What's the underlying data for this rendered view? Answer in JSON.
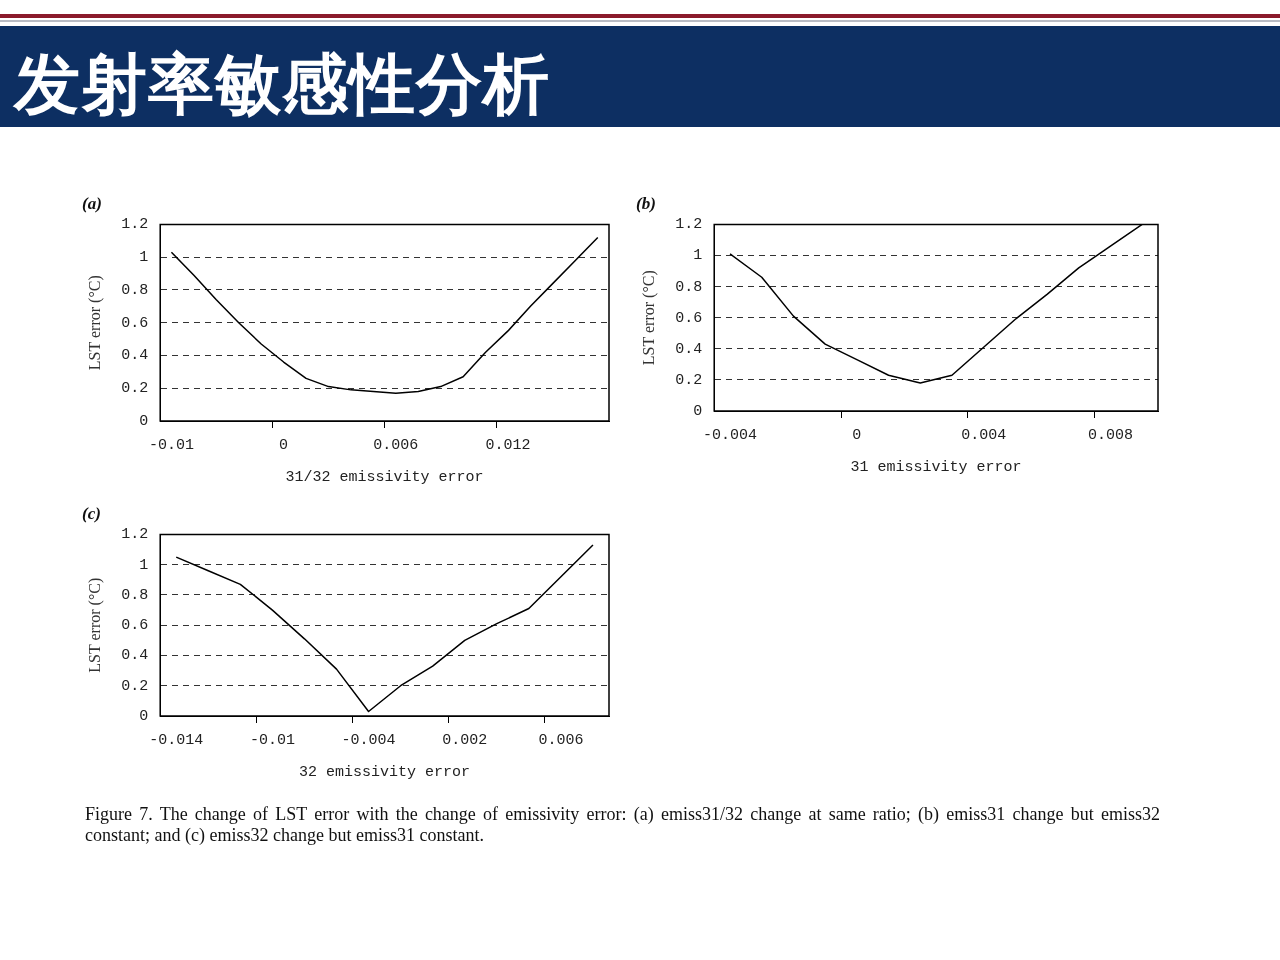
{
  "chart_data": [
    {
      "type": "other",
      "title": "发射率敏感性分析",
      "annotations": [
        "Figure 7.  The change of LST error with the change of emissivity error: (a) emiss31/32 change at same ratio; (b) emiss31 change but emiss32 constant; and (c) emiss32 change but emiss31 constant."
      ]
    },
    {
      "type": "line",
      "title": "(a)",
      "xlabel": "31/32 emissivity error",
      "ylabel": "LST error (°C)",
      "categories": [
        "-0.01",
        null,
        null,
        null,
        null,
        "0",
        null,
        null,
        null,
        null,
        "0.006",
        null,
        null,
        null,
        null,
        "0.012",
        null,
        null,
        null,
        null
      ],
      "values": [
        1.03,
        0.89,
        0.74,
        0.6,
        0.47,
        0.36,
        0.26,
        0.21,
        0.19,
        0.18,
        0.17,
        0.18,
        0.21,
        0.27,
        0.42,
        0.55,
        0.7,
        0.84,
        0.98,
        1.12
      ],
      "color": "#000000",
      "ylim": [
        0,
        1.2
      ],
      "yticks": [
        0,
        0.2,
        0.4,
        0.6,
        0.8,
        1,
        1.2
      ],
      "grid": "y",
      "legend": false
    },
    {
      "type": "line",
      "title": "(b)",
      "xlabel": "31 emissivity error",
      "ylabel": "LST error (°C)",
      "categories": [
        "-0.004",
        null,
        null,
        null,
        "0",
        null,
        null,
        null,
        "0.004",
        null,
        null,
        null,
        "0.008",
        null
      ],
      "values": [
        1.01,
        0.86,
        0.61,
        0.43,
        0.33,
        0.23,
        0.18,
        0.23,
        0.41,
        0.59,
        0.75,
        0.92,
        1.06,
        1.2
      ],
      "color": "#000000",
      "ylim": [
        0,
        1.2
      ],
      "yticks": [
        0,
        0.2,
        0.4,
        0.6,
        0.8,
        1,
        1.2
      ],
      "grid": "y",
      "legend": false
    },
    {
      "type": "line",
      "title": "(c)",
      "xlabel": "32 emissivity error",
      "ylabel": "LST error (°C)",
      "categories": [
        "-0.014",
        null,
        null,
        "-0.01",
        null,
        null,
        "-0.004",
        null,
        null,
        "0.002",
        null,
        null,
        "0.006",
        null
      ],
      "values": [
        1.05,
        0.96,
        0.87,
        0.7,
        0.51,
        0.31,
        0.03,
        0.2,
        0.33,
        0.5,
        0.61,
        0.71,
        0.92,
        1.13
      ],
      "color": "#000000",
      "ylim": [
        0,
        1.2
      ],
      "yticks": [
        0,
        0.2,
        0.4,
        0.6,
        0.8,
        1,
        1.2
      ],
      "grid": "y",
      "legend": false
    }
  ]
}
